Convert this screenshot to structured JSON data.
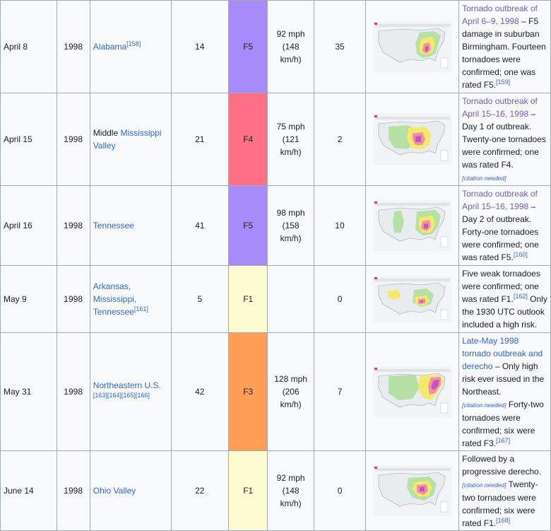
{
  "rating_colors": {
    "F5": "#a78bfa",
    "F4": "#ff6f86",
    "F3": "#ff9f57",
    "F1": "#fdfbd2"
  },
  "rows": [
    {
      "date": "April 8",
      "year": "1998",
      "area_prefix": "",
      "area_link": "Alabama",
      "area_ref": "[158]",
      "tornadoes": "14",
      "rating": "F5",
      "wind_mph": "92 mph",
      "wind_kmh": "(148 km/h)",
      "fatalities": "35",
      "note_link": "Tornado outbreak of April 6–9, 1998",
      "note_text": " – F5 damage in suburban Birmingham. Fourteen tornadoes were confirmed; one was rated F5.",
      "note_ref": "[159]",
      "cn": "",
      "note_after": ""
    },
    {
      "date": "April 15",
      "year": "1998",
      "area_prefix": "Middle ",
      "area_link": "Mississippi Valley",
      "area_ref": "",
      "tornadoes": "21",
      "rating": "F4",
      "wind_mph": "75 mph",
      "wind_kmh": "(121 km/h)",
      "fatalities": "2",
      "note_link": "Tornado outbreak of April 15–16, 1998",
      "note_text": " – Day 1 of outbreak. Twenty-one tornadoes were confirmed; one was rated F4.",
      "note_ref": "",
      "cn": "[citation needed]",
      "note_after": ""
    },
    {
      "date": "April 16",
      "year": "1998",
      "area_prefix": "",
      "area_link": "Tennessee",
      "area_ref": "",
      "tornadoes": "41",
      "rating": "F5",
      "wind_mph": "98 mph",
      "wind_kmh": "(158 km/h)",
      "fatalities": "10",
      "note_link": "Tornado outbreak of April 15–16, 1998",
      "note_text": " – Day 2 of outbreak. Forty-one tornadoes were confirmed; one was rated F5.",
      "note_ref": "[160]",
      "cn": "",
      "note_after": ""
    },
    {
      "date": "May 9",
      "year": "1998",
      "area_prefix": "",
      "area_link": "Arkansas, Mississippi, Tennessee",
      "area_ref": "[161]",
      "tornadoes": "5",
      "rating": "F1",
      "wind_mph": "",
      "wind_kmh": "",
      "fatalities": "0",
      "note_link": "",
      "note_text": "Five weak tornadoes were confirmed; one was rated F1.",
      "note_ref": "[162]",
      "cn": "",
      "note_after": " Only the 1930 UTC outlook included a high risk."
    },
    {
      "date": "May 31",
      "year": "1998",
      "area_prefix": "",
      "area_link": "Northeastern U.S.",
      "area_ref": "[163][164][165][166]",
      "tornadoes": "42",
      "rating": "F3",
      "wind_mph": "128 mph",
      "wind_kmh": "(206 km/h)",
      "fatalities": "7",
      "note_link": "Late-May 1998 tornado outbreak and derecho",
      "note_text": " – Only high risk ever issued in the Northeast.",
      "note_ref": "",
      "cn": "[citation needed]",
      "note_after": " Forty-two tornadoes were confirmed; six were rated F3.",
      "note_after_ref": "[167]"
    },
    {
      "date": "June 14",
      "year": "1998",
      "area_prefix": "",
      "area_link": "Ohio Valley",
      "area_ref": "",
      "tornadoes": "22",
      "rating": "F1",
      "wind_mph": "92 mph",
      "wind_kmh": "(148 km/h)",
      "fatalities": "0",
      "note_link": "",
      "note_text": "Followed by a progressive derecho.",
      "note_ref": "",
      "cn": "[citation needed]",
      "note_after": " Twenty-two tornadoes were confirmed; six were rated F1.",
      "note_after_ref": "[168]"
    }
  ]
}
